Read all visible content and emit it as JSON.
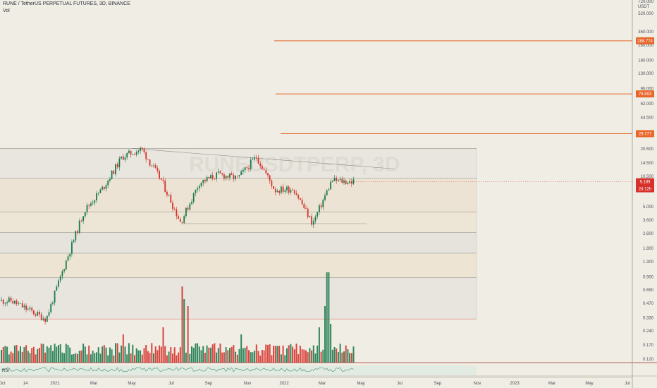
{
  "header": {
    "symbol_line": "RUNE / TetherUS PERPETUAL FUTURES, 3D, BINANCE",
    "volume_label": "Vol"
  },
  "watermark": "RUNEUSDTPERP, 3D",
  "colors": {
    "background": "#f0ede4",
    "up": "#1b7a4c",
    "down": "#d6322b",
    "level_line": "#e8662a",
    "price_tag": "#d6322b",
    "rsi_line": "#3f8f6d"
  },
  "chart_data": {
    "type": "candlestick",
    "title": "",
    "y_scale": "log",
    "y_axis_unit": "USDT",
    "y_ticks": [
      "720.000",
      "520.000",
      "360.000",
      "260.000",
      "180.000",
      "130.000",
      "90.000",
      "62.000",
      "44.500",
      "20.500",
      "14.500",
      "10.500",
      "5.000",
      "3.600",
      "2.600",
      "1.800",
      "1.300",
      "0.900",
      "0.650",
      "0.470",
      "0.330",
      "0.240",
      "0.170",
      "0.120"
    ],
    "x_ticks": [
      "Oct",
      "14",
      "2021",
      "Mar",
      "May",
      "Jul",
      "Sep",
      "Nov",
      "2022",
      "Mar",
      "May",
      "Jul",
      "Sep",
      "Nov",
      "2023",
      "Mar",
      "May",
      "Jul"
    ],
    "current_price": "9.189",
    "countdown": "2d 12h",
    "horizontal_levels": [
      {
        "value": "288.774",
        "tag": "288.774"
      },
      {
        "value": "78.893",
        "tag": "78.893"
      },
      {
        "value": "29.777",
        "tag": "29.777"
      }
    ],
    "key_closes": [
      {
        "date": "2020-10",
        "value": 0.5
      },
      {
        "date": "2020-12",
        "value": 0.32
      },
      {
        "date": "2021-01",
        "value": 1.2
      },
      {
        "date": "2021-02",
        "value": 4.5
      },
      {
        "date": "2021-03",
        "value": 8.0
      },
      {
        "date": "2021-04",
        "value": 17.0
      },
      {
        "date": "2021-05",
        "value": 20.5
      },
      {
        "date": "2021-06",
        "value": 9.5
      },
      {
        "date": "2021-07",
        "value": 3.4
      },
      {
        "date": "2021-08",
        "value": 9.0
      },
      {
        "date": "2021-09",
        "value": 11.0
      },
      {
        "date": "2021-10",
        "value": 10.0
      },
      {
        "date": "2021-11",
        "value": 17.0
      },
      {
        "date": "2021-12",
        "value": 7.5
      },
      {
        "date": "2022-01",
        "value": 7.8
      },
      {
        "date": "2022-02",
        "value": 3.3
      },
      {
        "date": "2022-03",
        "value": 9.5
      },
      {
        "date": "2022-04",
        "value": 9.189
      }
    ],
    "panes": {
      "volume": "Vol",
      "rsi": "RSI"
    }
  }
}
